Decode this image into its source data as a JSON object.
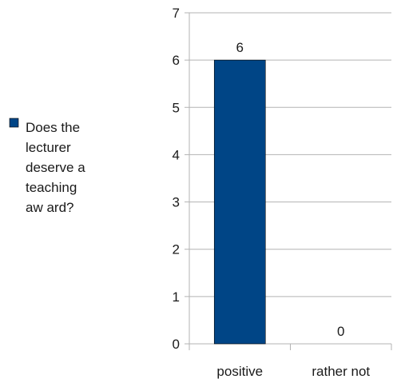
{
  "chart_data": {
    "type": "bar",
    "categories": [
      "positive",
      "rather not"
    ],
    "series": [
      {
        "name": "Does the lecturer deserve a teaching award?",
        "legend_lines": [
          "Does the",
          "lecturer",
          "deserve a",
          "teaching",
          "aw ard?"
        ],
        "values": [
          6,
          0
        ],
        "color": "#004586"
      }
    ],
    "data_labels": [
      "6",
      "0"
    ],
    "ylim": [
      0,
      7
    ],
    "yticks": [
      0,
      1,
      2,
      3,
      4,
      5,
      6,
      7
    ],
    "grid": true,
    "legend_position": "left"
  }
}
